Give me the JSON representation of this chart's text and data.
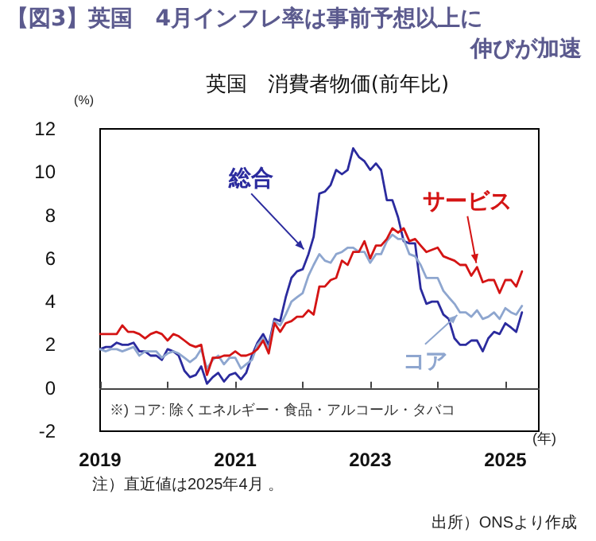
{
  "chart_data": {
    "type": "line",
    "title": "【図3】英国　4月インフレ率は事前予想以上に伸びが加速",
    "subtitle": "英国　消費者物価(前年比)",
    "ylabel": "(%)",
    "xlabel": "(年)",
    "annotations": [
      "※) コア: 除くエネルギー・食品・アルコール・タバコ",
      "注）直近値は2025年4月 。",
      "出所）ONSより作成"
    ],
    "x": [
      "2019-01",
      "2019-02",
      "2019-03",
      "2019-04",
      "2019-05",
      "2019-06",
      "2019-07",
      "2019-08",
      "2019-09",
      "2019-10",
      "2019-11",
      "2019-12",
      "2020-01",
      "2020-02",
      "2020-03",
      "2020-04",
      "2020-05",
      "2020-06",
      "2020-07",
      "2020-08",
      "2020-09",
      "2020-10",
      "2020-11",
      "2020-12",
      "2021-01",
      "2021-02",
      "2021-03",
      "2021-04",
      "2021-05",
      "2021-06",
      "2021-07",
      "2021-08",
      "2021-09",
      "2021-10",
      "2021-11",
      "2021-12",
      "2022-01",
      "2022-02",
      "2022-03",
      "2022-04",
      "2022-05",
      "2022-06",
      "2022-07",
      "2022-08",
      "2022-09",
      "2022-10",
      "2022-11",
      "2022-12",
      "2023-01",
      "2023-02",
      "2023-03",
      "2023-04",
      "2023-05",
      "2023-06",
      "2023-07",
      "2023-08",
      "2023-09",
      "2023-10",
      "2023-11",
      "2023-12",
      "2024-01",
      "2024-02",
      "2024-03",
      "2024-04",
      "2024-05",
      "2024-06",
      "2024-07",
      "2024-08",
      "2024-09",
      "2024-10",
      "2024-11",
      "2024-12",
      "2025-01",
      "2025-02",
      "2025-03",
      "2025-04"
    ],
    "series": [
      {
        "name": "総合",
        "color": "#2b2b9e",
        "values": [
          1.8,
          1.9,
          1.9,
          2.1,
          2.0,
          2.0,
          2.1,
          1.7,
          1.7,
          1.5,
          1.5,
          1.3,
          1.8,
          1.7,
          1.5,
          0.8,
          0.5,
          0.6,
          1.0,
          0.2,
          0.5,
          0.7,
          0.3,
          0.6,
          0.7,
          0.4,
          0.7,
          1.5,
          2.1,
          2.5,
          2.0,
          3.2,
          3.1,
          4.2,
          5.1,
          5.4,
          5.5,
          6.2,
          7.0,
          9.0,
          9.1,
          9.4,
          10.1,
          9.9,
          10.1,
          11.1,
          10.7,
          10.5,
          10.1,
          10.4,
          10.1,
          8.7,
          8.7,
          7.9,
          6.8,
          6.7,
          6.7,
          4.6,
          3.9,
          4.0,
          4.0,
          3.4,
          3.2,
          2.3,
          2.0,
          2.0,
          2.2,
          2.2,
          1.7,
          2.3,
          2.6,
          2.5,
          3.0,
          2.8,
          2.6,
          3.5
        ]
      },
      {
        "name": "コア",
        "color": "#8ea6cf",
        "values": [
          1.8,
          1.7,
          1.8,
          1.8,
          1.7,
          1.8,
          1.9,
          1.5,
          1.7,
          1.7,
          1.7,
          1.4,
          1.6,
          1.7,
          1.6,
          1.4,
          1.2,
          1.4,
          1.8,
          0.9,
          1.3,
          1.5,
          1.1,
          1.4,
          1.4,
          0.9,
          1.1,
          1.3,
          2.0,
          2.3,
          1.8,
          3.1,
          2.9,
          3.4,
          4.0,
          4.2,
          4.4,
          5.2,
          5.7,
          6.2,
          5.9,
          5.8,
          6.2,
          6.3,
          6.5,
          6.5,
          6.3,
          6.3,
          5.8,
          6.2,
          6.2,
          6.8,
          7.1,
          6.9,
          6.9,
          6.2,
          6.1,
          5.7,
          5.1,
          5.1,
          5.1,
          4.5,
          4.2,
          3.9,
          3.5,
          3.5,
          3.3,
          3.6,
          3.2,
          3.3,
          3.5,
          3.2,
          3.7,
          3.5,
          3.4,
          3.8
        ]
      },
      {
        "name": "サービス",
        "color": "#d41414",
        "values": [
          2.5,
          2.5,
          2.5,
          2.5,
          2.9,
          2.6,
          2.6,
          2.5,
          2.3,
          2.5,
          2.6,
          2.5,
          2.2,
          2.5,
          2.4,
          2.2,
          2.0,
          1.9,
          2.0,
          0.6,
          1.4,
          1.4,
          1.5,
          1.5,
          1.7,
          1.5,
          1.5,
          1.6,
          1.8,
          2.2,
          1.6,
          3.0,
          2.6,
          3.0,
          3.1,
          3.3,
          3.3,
          3.6,
          3.4,
          4.7,
          4.7,
          5.0,
          5.1,
          5.9,
          5.7,
          6.3,
          6.3,
          6.8,
          6.0,
          6.6,
          6.6,
          6.9,
          7.4,
          7.2,
          7.4,
          6.8,
          6.9,
          6.6,
          6.3,
          6.4,
          6.5,
          6.1,
          6.0,
          5.9,
          5.7,
          5.7,
          5.2,
          5.6,
          4.9,
          5.0,
          5.0,
          4.4,
          5.0,
          5.0,
          4.7,
          5.4
        ]
      }
    ],
    "xlim": [
      "2019-01",
      "2025-07"
    ],
    "xticks": [
      {
        "value": "2019",
        "label": "2019"
      },
      {
        "value": "2020",
        "label": null
      },
      {
        "value": "2021",
        "label": "2021"
      },
      {
        "value": "2022",
        "label": null
      },
      {
        "value": "2023",
        "label": "2023"
      },
      {
        "value": "2024",
        "label": null
      },
      {
        "value": "2025",
        "label": "2025"
      }
    ],
    "ylim": [
      -2,
      12
    ],
    "yticks": [
      -2,
      0,
      2,
      4,
      6,
      8,
      10,
      12
    ],
    "marker": "none"
  }
}
